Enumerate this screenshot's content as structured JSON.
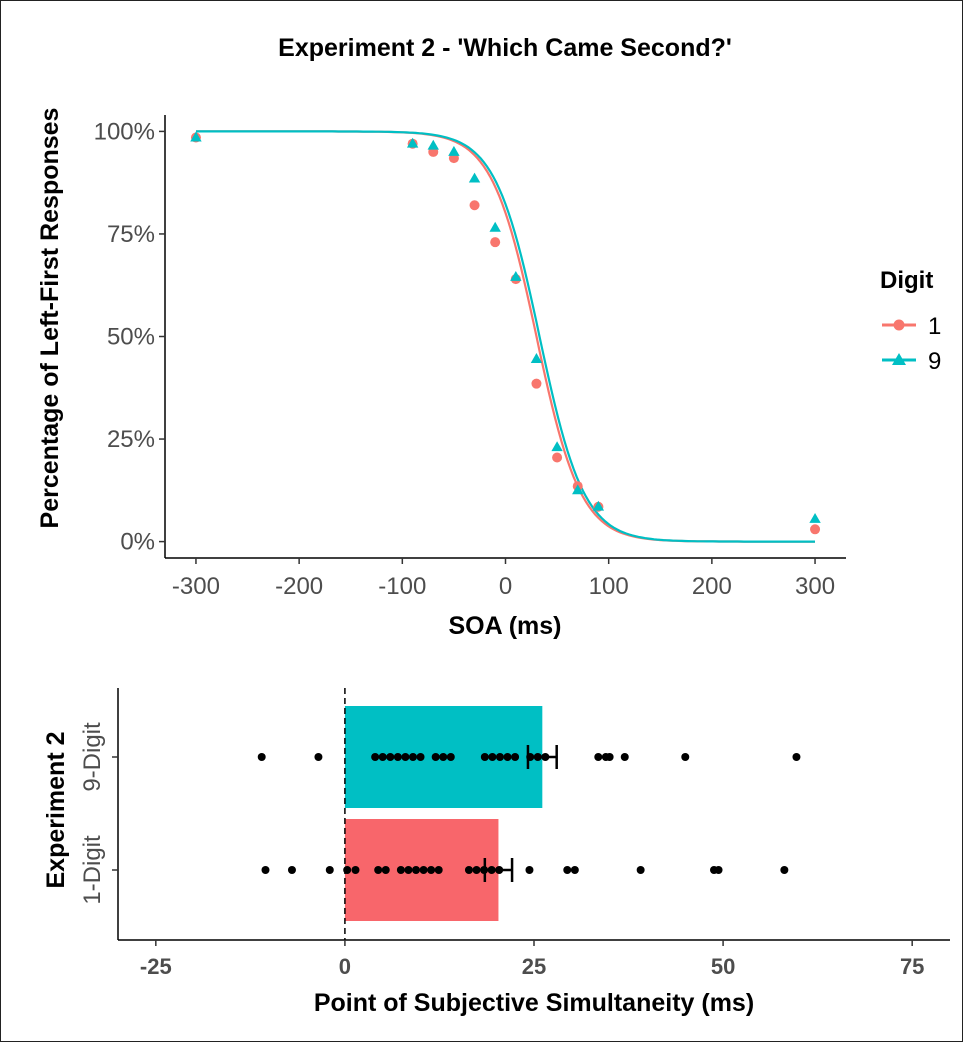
{
  "colors": {
    "digit1": "#F8766D",
    "digit9": "#00BFC4",
    "points": "#000000"
  },
  "chart_data": [
    {
      "type": "scatter",
      "title": "Experiment 2 - 'Which Came Second?'",
      "xlabel": "SOA (ms)",
      "ylabel": "Percentage of Left-First Responses",
      "xlim": [
        -330,
        330
      ],
      "ylim": [
        -0.04,
        1.04
      ],
      "x_ticks": [
        -300,
        -200,
        -100,
        0,
        100,
        200,
        300
      ],
      "x_tick_labels": [
        "-300",
        "-200",
        "-100",
        "0",
        "100",
        "200",
        "300"
      ],
      "y_ticks": [
        0,
        0.25,
        0.5,
        0.75,
        1.0
      ],
      "y_tick_labels": [
        "0%",
        "25%",
        "50%",
        "75%",
        "100%"
      ],
      "legend": {
        "title": "Digit",
        "position": "right"
      },
      "series": [
        {
          "name": "1",
          "marker": "circle",
          "x": [
            -300,
            -90,
            -70,
            -50,
            -30,
            -10,
            10,
            30,
            50,
            70,
            90,
            300
          ],
          "y": [
            0.985,
            0.97,
            0.95,
            0.935,
            0.82,
            0.73,
            0.64,
            0.385,
            0.205,
            0.135,
            0.085,
            0.03
          ],
          "fit": {
            "mu": 30,
            "s": 21.5
          }
        },
        {
          "name": "9",
          "marker": "triangle",
          "x": [
            -300,
            -90,
            -70,
            -50,
            -30,
            -10,
            10,
            30,
            50,
            70,
            90,
            300
          ],
          "y": [
            0.985,
            0.97,
            0.965,
            0.95,
            0.885,
            0.765,
            0.645,
            0.445,
            0.23,
            0.125,
            0.085,
            0.055
          ],
          "fit": {
            "mu": 33,
            "s": 21.5
          }
        }
      ]
    },
    {
      "type": "bar",
      "orientation": "horizontal",
      "xlabel": "Point of Subjective Simultaneity (ms)",
      "ylabel": "Experiment 2",
      "xlim": [
        -30,
        80
      ],
      "x_ticks": [
        -25,
        0,
        25,
        50,
        75
      ],
      "x_tick_labels": [
        "-25",
        "0",
        "25",
        "50",
        "75"
      ],
      "reference_line": 0,
      "categories": [
        "1-Digit",
        "9-Digit"
      ],
      "values": [
        20.3,
        26.1
      ],
      "errors": [
        1.8,
        1.9
      ],
      "individual_points": [
        [
          -10.5,
          -7,
          -2,
          0.3,
          1.4,
          4.4,
          5.4,
          7.4,
          8.4,
          9.4,
          10.4,
          11.4,
          12.4,
          16.4,
          17.4,
          18.4,
          19.4,
          20.4,
          24.4,
          29.4,
          30.4,
          39.1,
          48.8,
          49.4,
          58.1
        ],
        [
          -11,
          -3.5,
          4,
          5,
          6,
          7,
          8,
          9,
          10,
          12,
          13,
          14,
          18.5,
          19.5,
          20.5,
          21.5,
          22.5,
          24.5,
          25.5,
          26.5,
          33.5,
          34.5,
          35,
          37,
          45,
          59.7
        ]
      ]
    }
  ]
}
